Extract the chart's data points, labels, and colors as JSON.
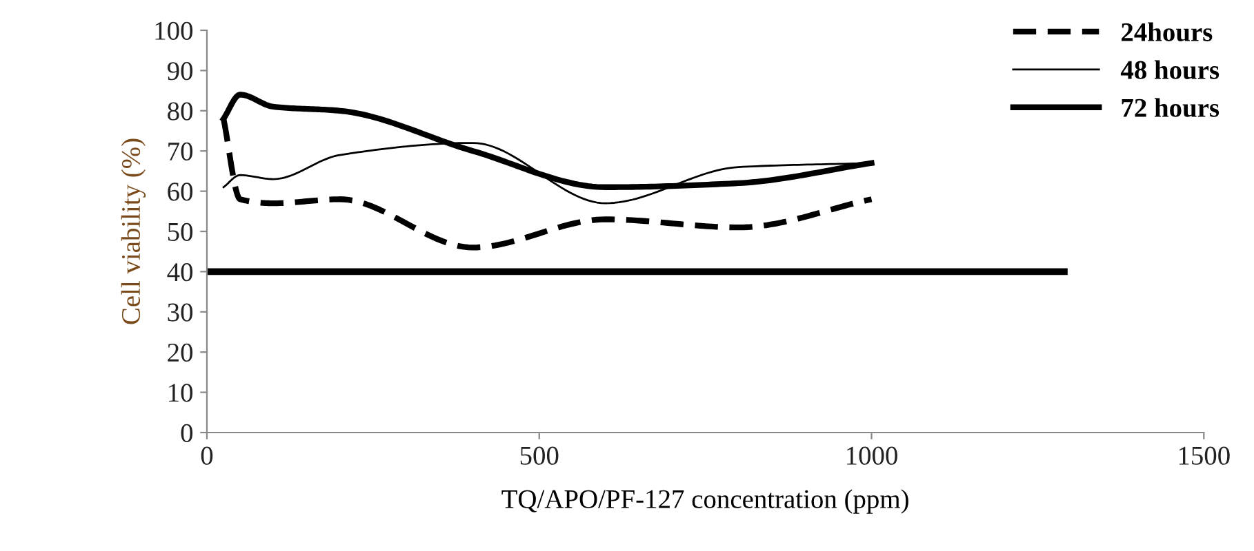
{
  "chart_data": {
    "type": "line",
    "xlabel": "TQ/APO/PF-127 concentration (ppm)",
    "ylabel": "Cell viability (%)",
    "x": [
      25,
      50,
      100,
      200,
      400,
      600,
      800,
      1000
    ],
    "series": [
      {
        "name": "24hours",
        "color": "#000000",
        "line_style": "dashed",
        "values": [
          78,
          58,
          57,
          58,
          46,
          53,
          51,
          58
        ]
      },
      {
        "name": "48 hours",
        "color": "#000000",
        "line_style": "solid",
        "values": [
          61,
          64,
          63,
          69,
          72,
          57,
          66,
          67
        ]
      },
      {
        "name": "72 hours",
        "color": "#000000",
        "line_style": "solid",
        "values": [
          78,
          84,
          81,
          80,
          70,
          61,
          62,
          67
        ]
      },
      {
        "color": "#000000",
        "line_style": "solid",
        "x": [
          0,
          1290
        ],
        "values": [
          40,
          40
        ]
      }
    ],
    "xlim": [
      0,
      1500
    ],
    "xticks": [
      0,
      500,
      1000,
      1500
    ],
    "ylim": [
      0,
      100
    ],
    "yticks": [
      0,
      10,
      20,
      30,
      40,
      50,
      60,
      70,
      80,
      90,
      100
    ],
    "grid": false,
    "legend": "top right",
    "marker": "none"
  }
}
